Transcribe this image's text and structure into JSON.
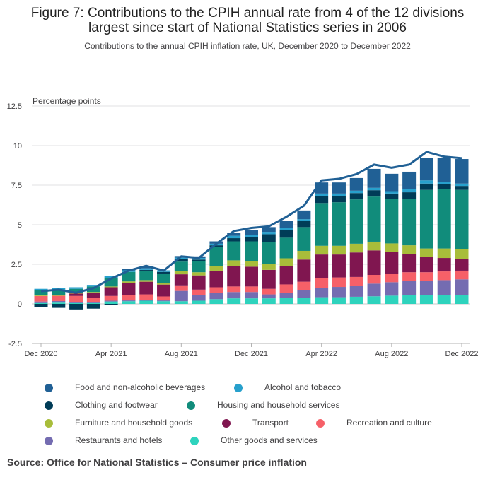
{
  "title": "Figure 7: Contributions to the CPIH annual rate from 4 of the 12 divisions largest since start of National Statistics series in 2006",
  "subtitle": "Contributions to the annual CPIH inflation rate, UK, December 2020 to December 2022",
  "source": "Source: Office for National Statistics – Consumer price inflation",
  "chart_data": {
    "type": "bar",
    "stacked": true,
    "ylabel": "Percentage points",
    "ylim": [
      -2.5,
      12.5
    ],
    "yticks": [
      "12.5",
      "10",
      "7.5",
      "5",
      "2.5",
      "0",
      "-2.5"
    ],
    "ytick_values": [
      12.5,
      10,
      7.5,
      5,
      2.5,
      0,
      -2.5
    ],
    "xtick_labels": [
      "Dec 2020",
      "Apr 2021",
      "Aug 2021",
      "Dec 2021",
      "Apr 2022",
      "Aug 2022",
      "Dec 2022"
    ],
    "xtick_indices": [
      0,
      4,
      8,
      12,
      16,
      20,
      24
    ],
    "categories": [
      "Dec 2020",
      "Jan 2021",
      "Feb 2021",
      "Mar 2021",
      "Apr 2021",
      "May 2021",
      "Jun 2021",
      "Jul 2021",
      "Aug 2021",
      "Sep 2021",
      "Oct 2021",
      "Nov 2021",
      "Dec 2021",
      "Jan 2022",
      "Feb 2022",
      "Mar 2022",
      "Apr 2022",
      "May 2022",
      "Jun 2022",
      "Jul 2022",
      "Aug 2022",
      "Sep 2022",
      "Oct 2022",
      "Nov 2022",
      "Dec 2022"
    ],
    "grid": true,
    "series": [
      {
        "name": "Other goods and services",
        "color": "#2ed3bd",
        "values": [
          0.05,
          0.08,
          0.05,
          0.05,
          0.15,
          0.17,
          0.2,
          0.17,
          0.17,
          0.2,
          0.3,
          0.35,
          0.35,
          0.35,
          0.38,
          0.4,
          0.42,
          0.42,
          0.45,
          0.48,
          0.52,
          0.55,
          0.55,
          0.55,
          0.55
        ]
      },
      {
        "name": "Restaurants and hotels",
        "color": "#746cb1",
        "values": [
          0.1,
          0.1,
          0.05,
          0.05,
          0.05,
          0.05,
          0.05,
          0.05,
          0.65,
          0.35,
          0.4,
          0.4,
          0.4,
          0.25,
          0.3,
          0.45,
          0.6,
          0.65,
          0.7,
          0.8,
          0.85,
          0.9,
          0.9,
          0.95,
          1.0
        ]
      },
      {
        "name": "Recreation and culture",
        "color": "#f66068",
        "values": [
          0.35,
          0.33,
          0.4,
          0.3,
          0.3,
          0.35,
          0.35,
          0.25,
          0.35,
          0.35,
          0.35,
          0.35,
          0.35,
          0.35,
          0.55,
          0.55,
          0.6,
          0.6,
          0.55,
          0.55,
          0.55,
          0.55,
          0.55,
          0.55,
          0.55
        ]
      },
      {
        "name": "Transport",
        "color": "#801650",
        "values": [
          0.0,
          0.0,
          0.15,
          0.3,
          0.55,
          0.75,
          0.8,
          0.75,
          0.7,
          0.9,
          1.05,
          1.3,
          1.25,
          1.2,
          1.15,
          1.4,
          1.5,
          1.45,
          1.55,
          1.55,
          1.35,
          1.15,
          0.95,
          0.85,
          0.75
        ]
      },
      {
        "name": "Furniture and household goods",
        "color": "#a8bd3a",
        "values": [
          0.05,
          0.05,
          0.05,
          0.05,
          0.05,
          0.1,
          0.1,
          0.1,
          0.2,
          0.2,
          0.3,
          0.35,
          0.35,
          0.35,
          0.5,
          0.55,
          0.55,
          0.55,
          0.55,
          0.55,
          0.55,
          0.55,
          0.55,
          0.6,
          0.6
        ]
      },
      {
        "name": "Housing and household services",
        "color": "#118c7b",
        "values": [
          0.3,
          0.35,
          0.25,
          0.35,
          0.55,
          0.6,
          0.6,
          0.6,
          0.6,
          0.7,
          1.2,
          1.2,
          1.25,
          1.4,
          1.3,
          1.5,
          2.7,
          2.75,
          2.8,
          2.85,
          2.8,
          2.95,
          3.7,
          3.75,
          3.75
        ]
      },
      {
        "name": "Clothing and footwear",
        "color": "#003c57",
        "values": [
          -0.2,
          -0.25,
          -0.35,
          -0.3,
          -0.05,
          0.0,
          0.05,
          0.1,
          0.15,
          0.1,
          0.1,
          0.2,
          0.25,
          0.5,
          0.5,
          0.4,
          0.45,
          0.4,
          0.4,
          0.4,
          0.35,
          0.4,
          0.4,
          0.3,
          0.25
        ]
      },
      {
        "name": "Alcohol and tobacco",
        "color": "#27a0cc",
        "values": [
          0.1,
          0.1,
          0.1,
          0.1,
          0.1,
          0.1,
          0.1,
          0.1,
          0.1,
          0.1,
          0.1,
          0.15,
          0.15,
          0.15,
          0.1,
          0.1,
          0.15,
          0.15,
          0.15,
          0.15,
          0.15,
          0.2,
          0.2,
          0.15,
          0.15
        ]
      },
      {
        "name": "Food and non-alcoholic beverages",
        "color": "#206095",
        "values": [
          0.0,
          0.0,
          0.0,
          0.0,
          0.0,
          0.1,
          0.1,
          0.0,
          0.1,
          0.1,
          0.15,
          0.2,
          0.3,
          0.3,
          0.45,
          0.55,
          0.7,
          0.7,
          0.8,
          1.2,
          1.1,
          1.1,
          1.4,
          1.5,
          1.55
        ]
      }
    ],
    "total": {
      "name": "CPIH annual rate",
      "color": "#206095",
      "values": [
        0.8,
        0.9,
        0.7,
        1.0,
        1.6,
        2.1,
        2.4,
        2.1,
        3.0,
        2.9,
        3.8,
        4.6,
        4.8,
        4.9,
        5.5,
        6.2,
        7.8,
        7.9,
        8.2,
        8.8,
        8.6,
        8.8,
        9.6,
        9.3,
        9.2
      ]
    }
  },
  "legend": [
    {
      "label": "Food and non-alcoholic beverages",
      "color": "#206095"
    },
    {
      "label": "Alcohol and tobacco",
      "color": "#27a0cc"
    },
    {
      "label": "Clothing and footwear",
      "color": "#003c57"
    },
    {
      "label": "Housing and household services",
      "color": "#118c7b"
    },
    {
      "label": "Furniture and household goods",
      "color": "#a8bd3a"
    },
    {
      "label": "Transport",
      "color": "#801650"
    },
    {
      "label": "Recreation and culture",
      "color": "#f66068"
    },
    {
      "label": "Restaurants and hotels",
      "color": "#746cb1"
    },
    {
      "label": "Other goods and services",
      "color": "#2ed3bd"
    }
  ]
}
